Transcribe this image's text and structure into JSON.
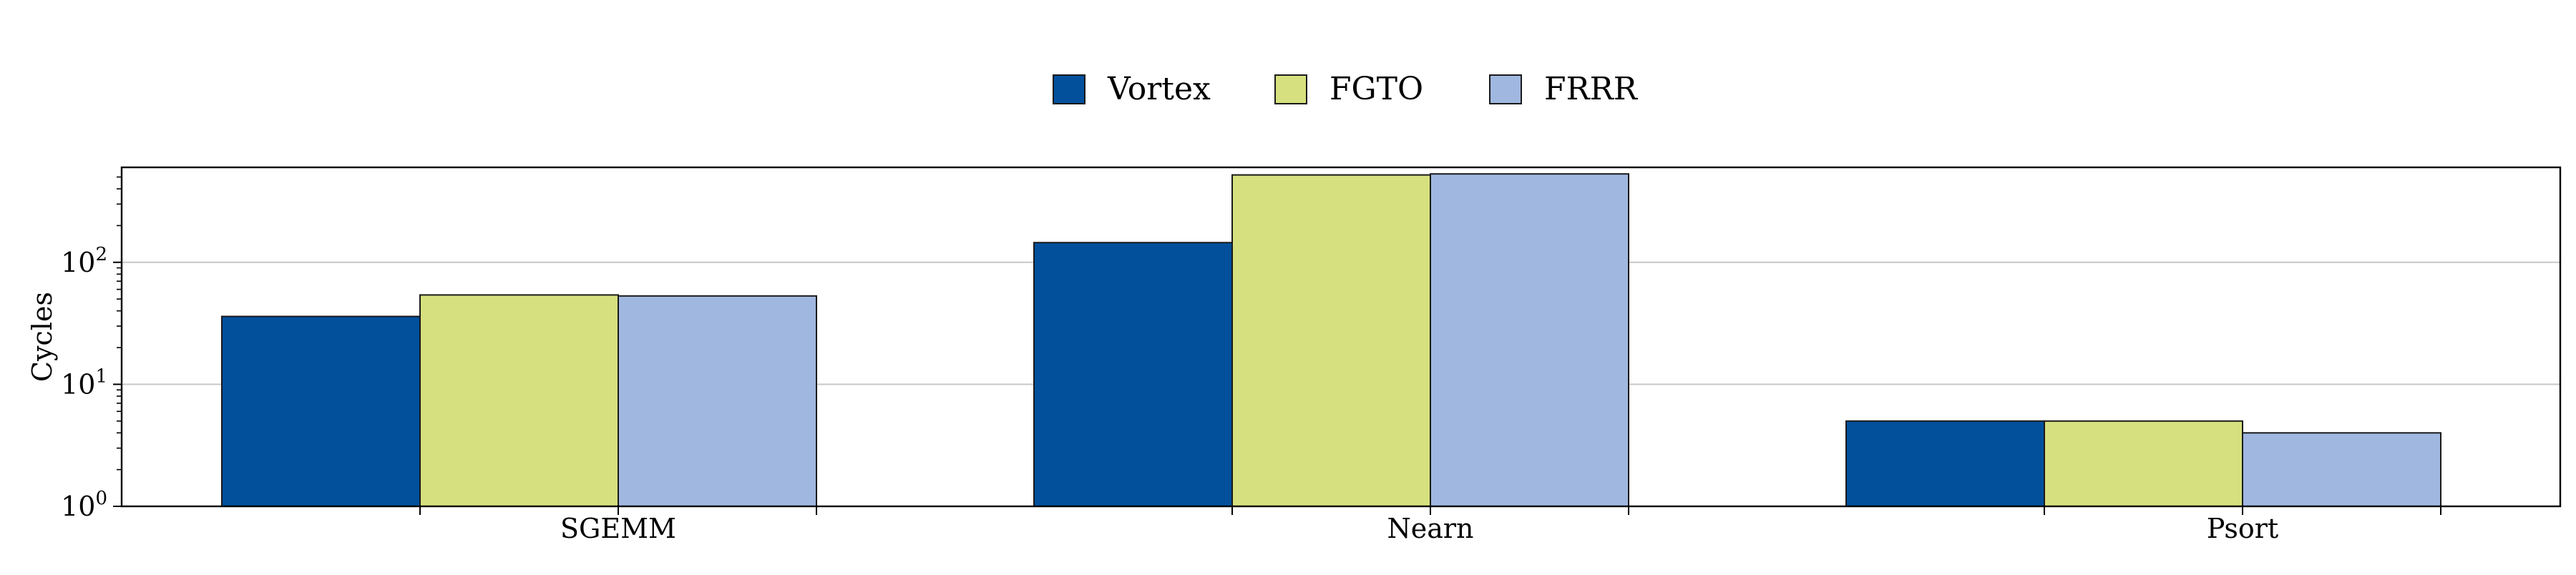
{
  "chart_data": {
    "type": "bar",
    "title": "",
    "xlabel": "",
    "ylabel": "Cycles",
    "yscale": "log",
    "ylim": [
      1,
      600
    ],
    "y_ticks": [
      {
        "value": 1,
        "base": "10",
        "exp": "0"
      },
      {
        "value": 10,
        "base": "10",
        "exp": "1"
      },
      {
        "value": 100,
        "base": "10",
        "exp": "2"
      }
    ],
    "grid": "y-major",
    "legend_position": "top-center",
    "categories": [
      "SGEMM",
      "Nearn",
      "Psort"
    ],
    "series": [
      {
        "name": "Vortex",
        "color": "#02509c",
        "values": [
          36,
          145,
          5
        ]
      },
      {
        "name": "FGTO",
        "color": "#d6e07e",
        "values": [
          54,
          520,
          5
        ]
      },
      {
        "name": "FRRR",
        "color": "#a0b8e0",
        "values": [
          53,
          530,
          4
        ]
      }
    ]
  }
}
